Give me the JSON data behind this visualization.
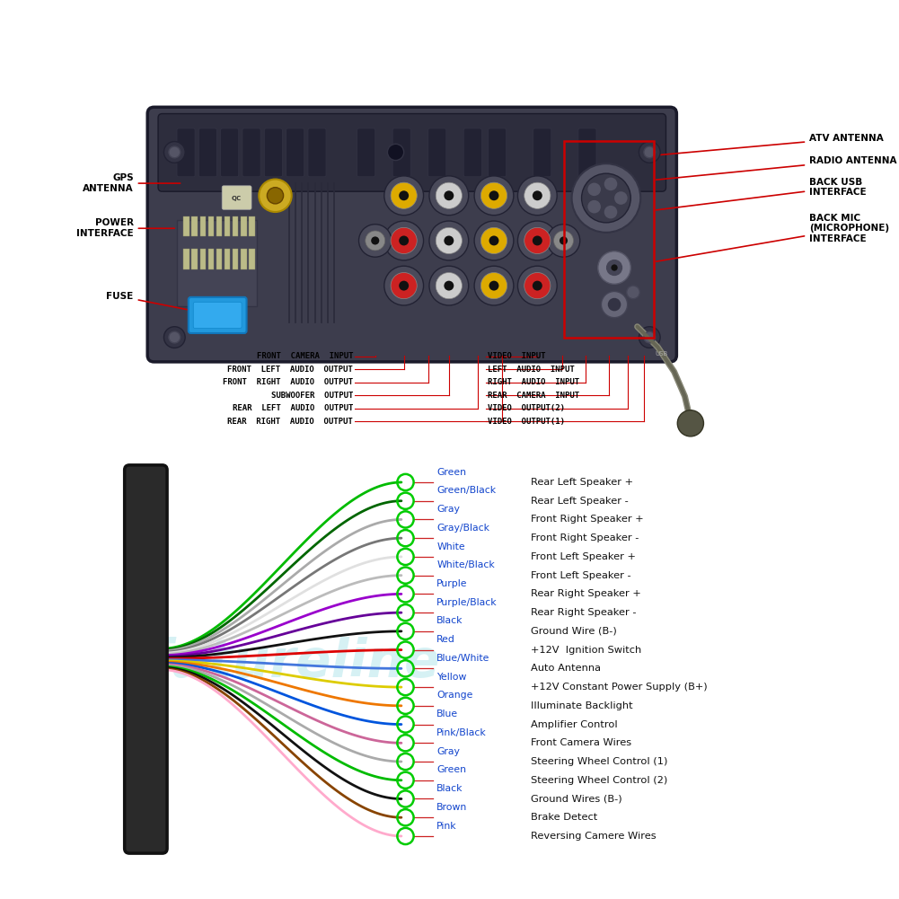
{
  "bg_color": "#ffffff",
  "wires": [
    {
      "color_name": "Green",
      "wire_color": "#00bb00",
      "label": "Rear Left Speaker +"
    },
    {
      "color_name": "Green/Black",
      "wire_color": "#006600",
      "label": "Rear Left Speaker -"
    },
    {
      "color_name": "Gray",
      "wire_color": "#aaaaaa",
      "label": "Front Right Speaker +"
    },
    {
      "color_name": "Gray/Black",
      "wire_color": "#777777",
      "label": "Front Right Speaker -"
    },
    {
      "color_name": "White",
      "wire_color": "#e0e0e0",
      "label": "Front Left Speaker +"
    },
    {
      "color_name": "White/Black",
      "wire_color": "#bbbbbb",
      "label": "Front Left Speaker -"
    },
    {
      "color_name": "Purple",
      "wire_color": "#9900cc",
      "label": "Rear Right Speaker +"
    },
    {
      "color_name": "Purple/Black",
      "wire_color": "#660099",
      "label": "Rear Right Speaker -"
    },
    {
      "color_name": "Black",
      "wire_color": "#111111",
      "label": "Ground Wire (B-)"
    },
    {
      "color_name": "Red",
      "wire_color": "#dd0000",
      "label": "+12V  Ignition Switch"
    },
    {
      "color_name": "Blue/White",
      "wire_color": "#4477dd",
      "label": "Auto Antenna"
    },
    {
      "color_name": "Yellow",
      "wire_color": "#ddcc00",
      "label": "+12V Constant Power Supply (B+)"
    },
    {
      "color_name": "Orange",
      "wire_color": "#ee7700",
      "label": "Illuminate Backlight"
    },
    {
      "color_name": "Blue",
      "wire_color": "#0055dd",
      "label": "Amplifier Control"
    },
    {
      "color_name": "Pink/Black",
      "wire_color": "#cc6699",
      "label": "Front Camera Wires"
    },
    {
      "color_name": "Gray",
      "wire_color": "#aaaaaa",
      "label": "Steering Wheel Control (1)"
    },
    {
      "color_name": "Green",
      "wire_color": "#00bb00",
      "label": "Steering Wheel Control (2)"
    },
    {
      "color_name": "Black",
      "wire_color": "#111111",
      "label": "Ground Wires (B-)"
    },
    {
      "color_name": "Brown",
      "wire_color": "#884400",
      "label": "Brake Detect"
    },
    {
      "color_name": "Pink",
      "wire_color": "#ffaacc",
      "label": "Reversing Camere Wires"
    }
  ],
  "label_color": "#1144cc",
  "desc_color": "#111111",
  "arrow_color": "#cc0000",
  "left_annot": [
    {
      "text": "GPS\nANTENNA",
      "target_xf": 0.245,
      "target_yf": 0.771
    },
    {
      "text": "POWER\nINTERFACE",
      "target_xf": 0.232,
      "target_yf": 0.737
    },
    {
      "text": "FUSE",
      "target_xf": 0.232,
      "target_yf": 0.694
    }
  ],
  "right_annot": [
    {
      "text": "ATV ANTENNA",
      "target_xf": 0.748,
      "target_yf": 0.871
    },
    {
      "text": "RADIO ANTENNA",
      "target_xf": 0.748,
      "target_yf": 0.847
    },
    {
      "text": "BACK USB\nINTERFACE",
      "target_xf": 0.748,
      "target_yf": 0.813
    },
    {
      "text": "BACK MIC\n(MICROPHONE)\nINTERFACE",
      "target_xf": 0.748,
      "target_yf": 0.76
    }
  ],
  "bottom_left_annot": [
    {
      "text": "FRONT CAMERA INPUT",
      "src_xf": 0.393,
      "src_yf": 0.605
    },
    {
      "text": "FRONT LEFT AUDIO OUTPUT",
      "src_xf": 0.415,
      "src_yf": 0.605
    },
    {
      "text": "FRONT RIGHT AUDIO OUTPUT",
      "src_xf": 0.435,
      "src_yf": 0.605
    },
    {
      "text": "SUBWOOFER OUTPUT",
      "src_xf": 0.455,
      "src_yf": 0.605
    },
    {
      "text": "REAR LEFT AUDIO OUTPUT",
      "src_xf": 0.475,
      "src_yf": 0.605
    },
    {
      "text": "REAR RIGHT AUDIO OUTPUT",
      "src_xf": 0.495,
      "src_yf": 0.605
    }
  ],
  "bottom_right_annot": [
    {
      "text": "VIDEO INPUT",
      "src_xf": 0.558,
      "src_yf": 0.605
    },
    {
      "text": "LEFT AUDIO INPUT",
      "src_xf": 0.575,
      "src_yf": 0.605
    },
    {
      "text": "RIGHT AUDIO INPUT",
      "src_xf": 0.592,
      "src_yf": 0.605
    },
    {
      "text": "REAR CAMERA INPUT",
      "src_xf": 0.61,
      "src_yf": 0.605
    },
    {
      "text": "VIDEO OUTPUT(2)",
      "src_xf": 0.628,
      "src_yf": 0.605
    },
    {
      "text": "VIDEO OUTPUT(1)",
      "src_xf": 0.645,
      "src_yf": 0.605
    }
  ]
}
